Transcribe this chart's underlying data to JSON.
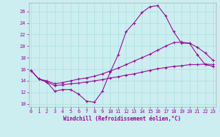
{
  "xlabel": "Windchill (Refroidissement éolien,°C)",
  "bg_color": "#cceef0",
  "line_color": "#990099",
  "grid_color": "#aadddd",
  "yticks": [
    10,
    12,
    14,
    16,
    18,
    20,
    22,
    24,
    26
  ],
  "xticks": [
    0,
    1,
    2,
    3,
    4,
    5,
    6,
    7,
    8,
    9,
    10,
    11,
    12,
    13,
    14,
    15,
    16,
    17,
    18,
    19,
    20,
    21,
    22,
    23
  ],
  "line1_x": [
    0,
    1,
    2,
    3,
    4,
    5,
    6,
    7,
    8,
    9,
    10,
    11,
    12,
    13,
    14,
    15,
    16,
    17,
    18,
    19,
    20,
    21,
    22,
    23
  ],
  "line1_y": [
    15.8,
    14.3,
    13.8,
    12.2,
    12.5,
    12.5,
    11.7,
    10.5,
    10.3,
    12.2,
    15.5,
    18.5,
    22.5,
    24.0,
    25.8,
    26.8,
    27.0,
    25.2,
    22.5,
    20.5,
    20.5,
    18.5,
    16.8,
    16.5
  ],
  "line2_x": [
    0,
    1,
    2,
    3,
    4,
    5,
    6,
    7,
    8,
    9,
    10,
    11,
    12,
    13,
    14,
    15,
    16,
    17,
    18,
    19,
    20,
    21,
    22,
    23
  ],
  "line2_y": [
    15.8,
    14.3,
    14.0,
    13.5,
    13.7,
    14.0,
    14.3,
    14.5,
    14.8,
    15.2,
    15.7,
    16.2,
    16.8,
    17.4,
    18.0,
    18.6,
    19.3,
    20.0,
    20.6,
    20.7,
    20.5,
    19.8,
    18.8,
    17.5
  ],
  "line3_x": [
    0,
    1,
    2,
    3,
    4,
    5,
    6,
    7,
    8,
    9,
    10,
    11,
    12,
    13,
    14,
    15,
    16,
    17,
    18,
    19,
    20,
    21,
    22,
    23
  ],
  "line3_y": [
    15.8,
    14.3,
    13.8,
    13.2,
    13.3,
    13.5,
    13.6,
    13.8,
    14.0,
    14.2,
    14.5,
    14.7,
    15.0,
    15.2,
    15.5,
    15.8,
    16.1,
    16.3,
    16.5,
    16.6,
    16.8,
    16.8,
    16.9,
    16.8
  ],
  "markersize": 3,
  "linewidth": 0.8
}
